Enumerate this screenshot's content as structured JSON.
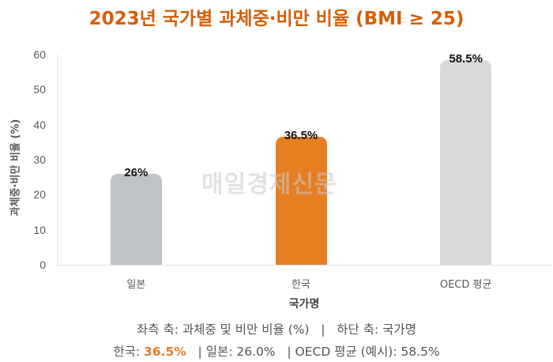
{
  "title": "2023년 국가별 과체중·비만 비율 (BMI ≥ 25)",
  "watermark": "매일경제신문",
  "chart_data": {
    "type": "bar",
    "title": "2023년 국가별 과체중·비만 비율 (BMI ≥ 25)",
    "categories": [
      "일본",
      "한국",
      "OECD 평균"
    ],
    "values": [
      26,
      36.5,
      58.5
    ],
    "value_labels": [
      "26%",
      "36.5%",
      "58.5%"
    ],
    "colors": [
      "#BDC3C7",
      "#E67E22",
      "#D9D9D9"
    ],
    "xlabel": "국가명",
    "ylabel": "과체중·비만 비율 (%)",
    "ylim": [
      0,
      60
    ],
    "yticks": [
      "0",
      "10",
      "20",
      "30",
      "40",
      "50",
      "60"
    ],
    "grid": false,
    "legend": null
  },
  "captions": {
    "line1": "좌측 축: 과체중 및 비만 비율 (%)   |   하단 축: 국가명",
    "line2_prefix": "한국: ",
    "line2_highlight": "36.5%",
    "line2_rest": "   | 일본: 26.0%   | OECD 평균 (예시): 58.5%"
  }
}
